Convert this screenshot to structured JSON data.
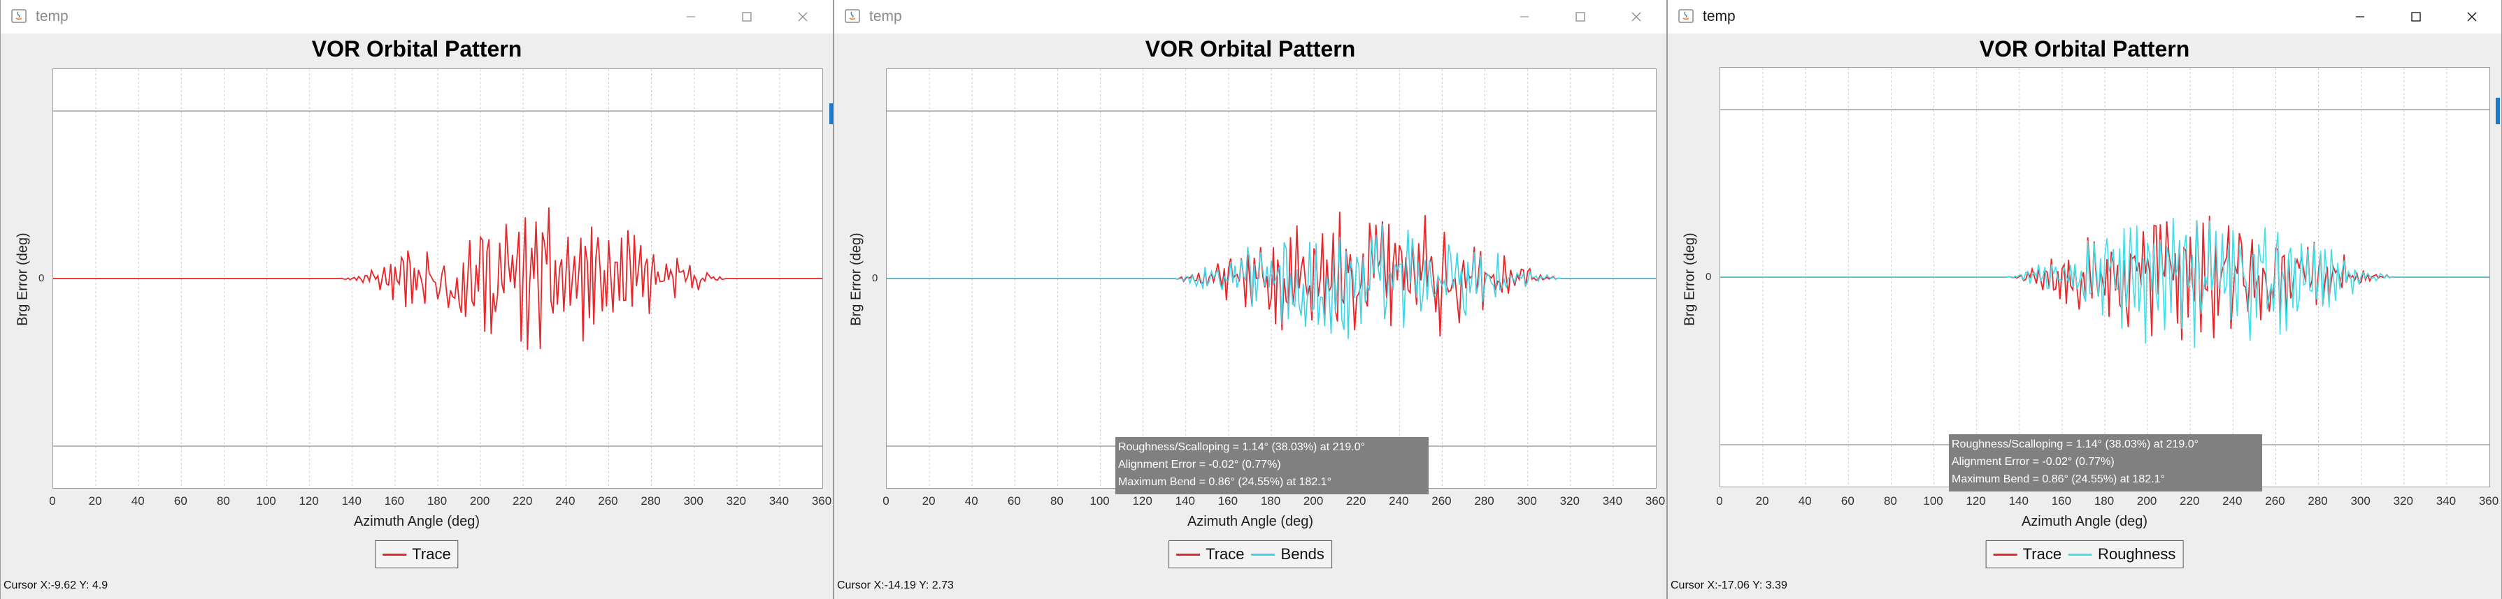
{
  "windows": [
    {
      "title": "temp",
      "chart": {
        "title": "VOR Orbital Pattern",
        "ylabel": "Brg Error (deg)",
        "xlabel": "Azimuth Angle (deg)",
        "zero_label": "0",
        "xticks": [
          "0",
          "20",
          "40",
          "60",
          "80",
          "100",
          "120",
          "140",
          "160",
          "180",
          "200",
          "220",
          "240",
          "260",
          "280",
          "300",
          "320",
          "340",
          "360"
        ]
      },
      "legend": [
        {
          "label": "Trace",
          "color": "#e8262a"
        }
      ],
      "stats": null,
      "cursor": "Cursor X:-9.62 Y: 4.9"
    },
    {
      "title": "temp",
      "chart": {
        "title": "VOR Orbital Pattern",
        "ylabel": "Brg Error (deg)",
        "xlabel": "Azimuth Angle (deg)",
        "zero_label": "0",
        "xticks": [
          "0",
          "20",
          "40",
          "60",
          "80",
          "100",
          "120",
          "140",
          "160",
          "180",
          "200",
          "220",
          "240",
          "260",
          "280",
          "300",
          "320",
          "340",
          "360"
        ]
      },
      "legend": [
        {
          "label": "Trace",
          "color": "#e8262a"
        },
        {
          "label": "Bends",
          "color": "#3fd3e8"
        }
      ],
      "stats": [
        "Roughness/Scalloping = 1.14° (38.03%) at 219.0°",
        "Alignment Error = -0.02° (0.77%)",
        "Maximum Bend = 0.86° (24.55%) at 182.1°"
      ],
      "cursor": "Cursor X:-14.19 Y: 2.73"
    },
    {
      "title": "temp",
      "chart": {
        "title": "VOR Orbital Pattern",
        "ylabel": "Brg Error (deg)",
        "xlabel": "Azimuth Angle (deg)",
        "zero_label": "0",
        "xticks": [
          "0",
          "20",
          "40",
          "60",
          "80",
          "100",
          "120",
          "140",
          "160",
          "180",
          "200",
          "220",
          "240",
          "260",
          "280",
          "300",
          "320",
          "340",
          "360"
        ]
      },
      "legend": [
        {
          "label": "Trace",
          "color": "#e8262a"
        },
        {
          "label": "Roughness",
          "color": "#3fe0ea"
        }
      ],
      "stats": [
        "Roughness/Scalloping = 1.14° (38.03%) at 219.0°",
        "Alignment Error = -0.02° (0.77%)",
        "Maximum Bend = 0.86° (24.55%) at 182.1°"
      ],
      "cursor": "Cursor X:-17.06 Y: 3.39"
    }
  ],
  "chart_data": [
    {
      "type": "line",
      "title": "VOR Orbital Pattern",
      "xlabel": "Azimuth Angle (deg)",
      "ylabel": "Brg Error (deg)",
      "xlim": [
        0,
        360
      ],
      "ylim": [
        -3,
        3
      ],
      "limit_lines": [
        2.4,
        -2.4
      ],
      "grid": true,
      "series": [
        {
          "name": "Trace",
          "color": "#e8262a",
          "x_range": [
            134,
            316
          ],
          "peak_amplitude": 0.9,
          "samples": 360
        }
      ]
    },
    {
      "type": "line",
      "title": "VOR Orbital Pattern",
      "xlabel": "Azimuth Angle (deg)",
      "ylabel": "Brg Error (deg)",
      "xlim": [
        0,
        360
      ],
      "ylim": [
        -3,
        3
      ],
      "limit_lines": [
        2.4,
        -2.4
      ],
      "grid": true,
      "series": [
        {
          "name": "Trace",
          "color": "#e8262a",
          "x_range": [
            134,
            316
          ],
          "peak_amplitude": 0.9,
          "samples": 360
        },
        {
          "name": "Bends",
          "color": "#3fd3e8",
          "x_range": [
            134,
            316
          ],
          "peak_amplitude": 0.85,
          "samples": 360
        }
      ]
    },
    {
      "type": "line",
      "title": "VOR Orbital Pattern",
      "xlabel": "Azimuth Angle (deg)",
      "ylabel": "Brg Error (deg)",
      "xlim": [
        0,
        360
      ],
      "ylim": [
        -3,
        3
      ],
      "limit_lines": [
        2.4,
        -2.4
      ],
      "grid": true,
      "series": [
        {
          "name": "Trace",
          "color": "#e8262a",
          "x_range": [
            134,
            316
          ],
          "peak_amplitude": 0.9,
          "samples": 360
        },
        {
          "name": "Roughness",
          "color": "#3fe0ea",
          "x_range": [
            134,
            316
          ],
          "peak_amplitude": 0.95,
          "samples": 360
        }
      ]
    }
  ]
}
